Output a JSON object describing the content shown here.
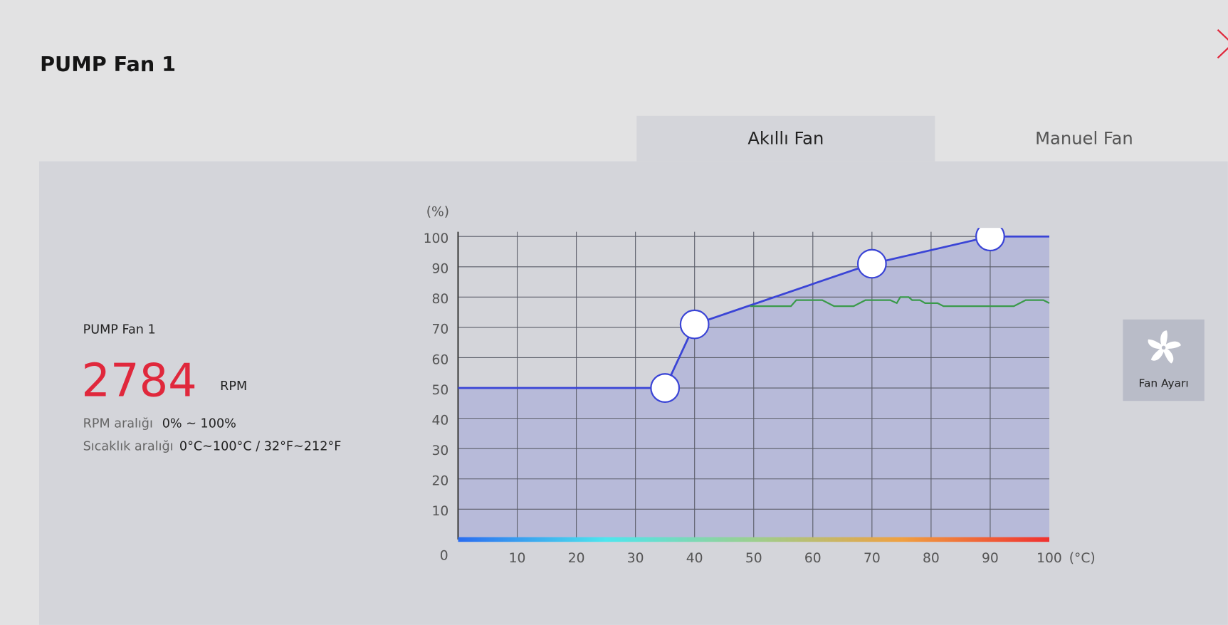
{
  "header": {
    "title": "PUMP Fan 1"
  },
  "tabs": [
    "Akıllı Fan",
    "Manuel Fan"
  ],
  "info": {
    "name": "PUMP Fan 1",
    "rpm": "2784",
    "rpm_unit": "RPM",
    "rpm_range_label": "RPM aralığı",
    "rpm_range": "0% ~ 100%",
    "temp_range_label": "Sıcaklık aralığı",
    "temp_range": "0°C~100°C / 32°F~212°F"
  },
  "button": {
    "label": "Fan Ayarı"
  },
  "chart_data": {
    "type": "line",
    "y_label": "(%)",
    "x_label": "(°C)",
    "xlim": [
      0,
      100
    ],
    "ylim": [
      0,
      100
    ],
    "xticks": [
      0,
      10,
      20,
      30,
      40,
      50,
      60,
      70,
      80,
      90,
      100
    ],
    "yticks": [
      10,
      20,
      30,
      40,
      50,
      60,
      70,
      80,
      90,
      100
    ],
    "grid": true,
    "series": [
      {
        "color": "#3a44d6",
        "x": [
          0,
          35,
          40,
          70,
          90,
          100
        ],
        "values": [
          50,
          50,
          71,
          91,
          100,
          100
        ]
      },
      {
        "color": "#3a9a4a",
        "x": [
          49.4,
          56.3,
          57.2,
          61.6,
          63.6,
          66.9,
          68.9,
          73.1,
          74.2,
          74.8,
          76.2,
          76.8,
          78.1,
          79,
          81.1,
          82.1,
          94,
          96,
          99,
          100
        ],
        "values": [
          77,
          77,
          79,
          79,
          77,
          77,
          79,
          79,
          78,
          80,
          80,
          79,
          79,
          78,
          78,
          77,
          77,
          79,
          79,
          78
        ]
      }
    ]
  }
}
